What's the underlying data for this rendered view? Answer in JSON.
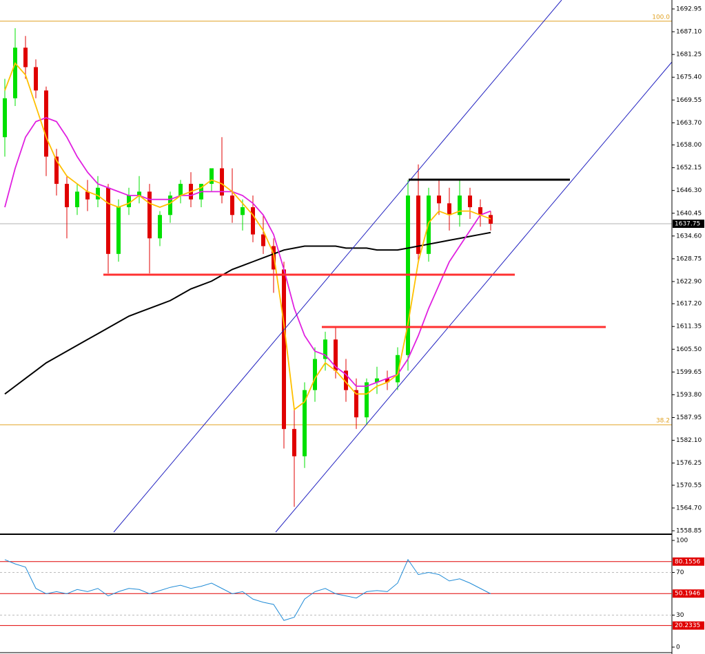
{
  "chart_data": {
    "type": "candlestick",
    "open": [
      1660,
      1670,
      1683,
      1678,
      1672,
      1655,
      1648,
      1642,
      1646,
      1644,
      1647,
      1630,
      1642,
      1645,
      1646,
      1634,
      1640,
      1645,
      1648,
      1644,
      1648,
      1652,
      1645,
      1640,
      1642,
      1635,
      1632,
      1626,
      1585,
      1578,
      1595,
      1603,
      1608,
      1600,
      1595,
      1588,
      1597,
      1598,
      1597,
      1604,
      1645,
      1630,
      1645,
      1643,
      1640,
      1645,
      1642,
      1640
    ],
    "high": [
      1675,
      1688,
      1686,
      1680,
      1673,
      1657,
      1650,
      1648,
      1649,
      1650,
      1648,
      1644,
      1647,
      1650,
      1648,
      1641,
      1646,
      1649,
      1651,
      1648,
      1652,
      1660,
      1652,
      1644,
      1645,
      1640,
      1634,
      1628,
      1590,
      1597,
      1606,
      1610,
      1611,
      1603,
      1598,
      1598,
      1601,
      1600,
      1606,
      1649,
      1653,
      1647,
      1649,
      1647,
      1649,
      1647,
      1644,
      1641
    ],
    "low": [
      1655,
      1668,
      1675,
      1670,
      1650,
      1645,
      1634,
      1640,
      1641,
      1642,
      1625,
      1628,
      1640,
      1643,
      1625,
      1632,
      1638,
      1643,
      1642,
      1642,
      1646,
      1643,
      1638,
      1636,
      1633,
      1630,
      1620,
      1580,
      1565,
      1575,
      1592,
      1600,
      1598,
      1592,
      1585,
      1586,
      1594,
      1595,
      1595,
      1600,
      1628,
      1628,
      1640,
      1636,
      1637,
      1639,
      1637,
      1636
    ],
    "close": [
      1670,
      1683,
      1678,
      1672,
      1655,
      1648,
      1642,
      1646,
      1644,
      1647,
      1630,
      1642,
      1645,
      1646,
      1634,
      1640,
      1645,
      1648,
      1644,
      1648,
      1652,
      1645,
      1640,
      1642,
      1635,
      1632,
      1626,
      1585,
      1578,
      1595,
      1603,
      1608,
      1600,
      1595,
      1588,
      1597,
      1598,
      1597,
      1604,
      1645,
      1630,
      1645,
      1643,
      1640,
      1645,
      1642,
      1640,
      1637.75
    ],
    "up_color": "#00e000",
    "down_color": "#e00000",
    "moving_averages": [
      {
        "color": "#000000",
        "values": [
          1594,
          1596,
          1598,
          1600,
          1602,
          1603.5,
          1605,
          1606.5,
          1608,
          1609.5,
          1611,
          1612.5,
          1614,
          1615,
          1616,
          1617,
          1618,
          1619.5,
          1621,
          1622,
          1623,
          1624.5,
          1626,
          1627,
          1628,
          1629,
          1630,
          1631,
          1631.5,
          1632,
          1632,
          1632,
          1632,
          1631.5,
          1631.5,
          1631.5,
          1631,
          1631,
          1631,
          1631.5,
          1632,
          1632.5,
          1633,
          1633.5,
          1634,
          1634.5,
          1635,
          1635.5
        ]
      },
      {
        "color": "#e020e0",
        "values": [
          1642,
          1652,
          1660,
          1664,
          1665,
          1664,
          1660,
          1655,
          1651,
          1648,
          1647,
          1646,
          1645,
          1645,
          1644,
          1644,
          1644,
          1645,
          1645,
          1646,
          1646,
          1646,
          1646,
          1645,
          1643,
          1640,
          1635,
          1626,
          1616,
          1609,
          1605,
          1604,
          1601,
          1599,
          1596,
          1596,
          1597,
          1598,
          1599,
          1603,
          1609,
          1616,
          1622,
          1628,
          1632,
          1636,
          1640,
          1641
        ]
      },
      {
        "color": "#ffc000",
        "values": [
          1672,
          1679,
          1676,
          1668,
          1660,
          1654,
          1650,
          1648,
          1646,
          1645,
          1643,
          1642,
          1643,
          1645,
          1643,
          1642,
          1643,
          1645,
          1646,
          1647,
          1649,
          1648,
          1646,
          1643,
          1640,
          1636,
          1630,
          1612,
          1590,
          1592,
          1598,
          1602,
          1600,
          1597,
          1594,
          1594,
          1596,
          1597,
          1599,
          1612,
          1628,
          1638,
          1641,
          1640,
          1641,
          1641,
          1640,
          1639
        ]
      }
    ],
    "ylim": [
      1558.14,
      1695.25
    ],
    "yticks": [
      {
        "value": 1692.95,
        "label": "1692.95"
      },
      {
        "value": 1687.1,
        "label": "1687.10"
      },
      {
        "value": 1681.25,
        "label": "1681.25"
      },
      {
        "value": 1675.4,
        "label": "1675.40"
      },
      {
        "value": 1669.55,
        "label": "1669.55"
      },
      {
        "value": 1663.7,
        "label": "1663.70"
      },
      {
        "value": 1658,
        "label": "1658.00"
      },
      {
        "value": 1652.15,
        "label": "1652.15"
      },
      {
        "value": 1646.3,
        "label": "1646.30"
      },
      {
        "value": 1640.45,
        "label": "1640.45"
      },
      {
        "value": 1634.6,
        "label": "1634.60"
      },
      {
        "value": 1628.75,
        "label": "1628.75"
      },
      {
        "value": 1622.9,
        "label": "1622.90"
      },
      {
        "value": 1617.2,
        "label": "1617.20"
      },
      {
        "value": 1611.35,
        "label": "1611.35"
      },
      {
        "value": 1605.5,
        "label": "1605.50"
      },
      {
        "value": 1599.65,
        "label": "1599.65"
      },
      {
        "value": 1593.8,
        "label": "1593.80"
      },
      {
        "value": 1587.95,
        "label": "1587.95"
      },
      {
        "value": 1582.1,
        "label": "1582.10"
      },
      {
        "value": 1576.25,
        "label": "1576.25"
      },
      {
        "value": 1570.55,
        "label": "1570.55"
      },
      {
        "value": 1564.7,
        "label": "1564.70"
      },
      {
        "value": 1558.85,
        "label": "1558.85"
      }
    ],
    "last_price": 1637.75,
    "fib_levels": [
      {
        "price": 1689.8,
        "label": "100.0"
      },
      {
        "price": 1586.1,
        "label": "38.2"
      }
    ],
    "rsi": {
      "color": "#1e8ad6",
      "values": [
        82,
        78,
        75,
        55,
        50,
        52,
        50,
        54,
        52,
        55,
        48,
        52,
        55,
        54,
        50,
        53,
        56,
        58,
        55,
        57,
        60,
        55,
        50,
        52,
        45,
        42,
        40,
        25,
        28,
        45,
        52,
        55,
        50,
        48,
        46,
        52,
        53,
        52,
        60,
        82,
        68,
        70,
        68,
        62,
        64,
        60,
        55,
        50
      ],
      "ylim": [
        0,
        100
      ],
      "yticks": [
        100,
        70,
        30,
        0
      ],
      "dashed_levels": [
        70,
        30
      ],
      "levels": [
        80.1556,
        50.1946,
        20.2335
      ]
    }
  }
}
